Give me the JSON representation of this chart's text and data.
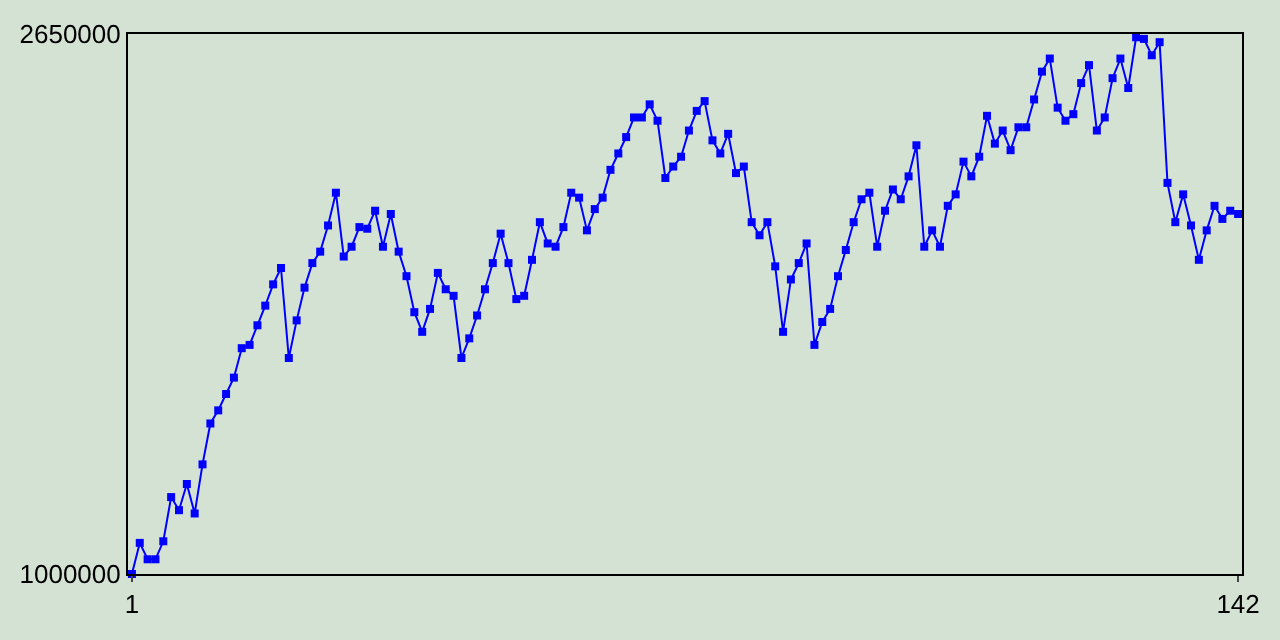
{
  "chart_data": {
    "type": "line",
    "marker": "square",
    "line_style": "solid",
    "grid": false,
    "legend": false,
    "xlim": [
      0.5,
      142.5
    ],
    "xticks": [
      1,
      142
    ],
    "ylim": [
      1000000,
      2650000
    ],
    "yticks": [
      1000000,
      2650000
    ],
    "x": [
      1,
      2,
      3,
      4,
      5,
      6,
      7,
      8,
      9,
      10,
      11,
      12,
      13,
      14,
      15,
      16,
      17,
      18,
      19,
      20,
      21,
      22,
      23,
      24,
      25,
      26,
      27,
      28,
      29,
      30,
      31,
      32,
      33,
      34,
      35,
      36,
      37,
      38,
      39,
      40,
      41,
      42,
      43,
      44,
      45,
      46,
      47,
      48,
      49,
      50,
      51,
      52,
      53,
      54,
      55,
      56,
      57,
      58,
      59,
      60,
      61,
      62,
      63,
      64,
      65,
      66,
      67,
      68,
      69,
      70,
      71,
      72,
      73,
      74,
      75,
      76,
      77,
      78,
      79,
      80,
      81,
      82,
      83,
      84,
      85,
      86,
      87,
      88,
      89,
      90,
      91,
      92,
      93,
      94,
      95,
      96,
      97,
      98,
      99,
      100,
      101,
      102,
      103,
      104,
      105,
      106,
      107,
      108,
      109,
      110,
      111,
      112,
      113,
      114,
      115,
      116,
      117,
      118,
      119,
      120,
      121,
      122,
      123,
      124,
      125,
      126,
      127,
      128,
      129,
      130,
      131,
      132,
      133,
      134,
      135,
      136,
      137,
      138,
      139,
      140,
      141,
      142
    ],
    "series": [
      {
        "color": "#0000ff",
        "values": [
          1000000,
          1095000,
          1045000,
          1045000,
          1100000,
          1235000,
          1195000,
          1275000,
          1185000,
          1335000,
          1460000,
          1500000,
          1550000,
          1600000,
          1690000,
          1700000,
          1760000,
          1820000,
          1885000,
          1935000,
          1660000,
          1775000,
          1875000,
          1950000,
          1985000,
          2065000,
          2165000,
          1970000,
          2000000,
          2060000,
          2055000,
          2110000,
          2000000,
          2100000,
          1985000,
          1910000,
          1800000,
          1740000,
          1810000,
          1920000,
          1870000,
          1850000,
          1660000,
          1720000,
          1790000,
          1870000,
          1950000,
          2040000,
          1950000,
          1840000,
          1850000,
          1960000,
          2075000,
          2010000,
          2000000,
          2060000,
          2165000,
          2150000,
          2050000,
          2115000,
          2150000,
          2235000,
          2285000,
          2335000,
          2395000,
          2395000,
          2435000,
          2385000,
          2210000,
          2245000,
          2275000,
          2355000,
          2415000,
          2445000,
          2325000,
          2285000,
          2345000,
          2225000,
          2245000,
          2075000,
          2035000,
          2075000,
          1940000,
          1740000,
          1900000,
          1950000,
          2010000,
          1700000,
          1770000,
          1810000,
          1910000,
          1990000,
          2075000,
          2145000,
          2165000,
          2000000,
          2110000,
          2175000,
          2145000,
          2215000,
          2310000,
          2000000,
          2050000,
          2000000,
          2125000,
          2160000,
          2260000,
          2215000,
          2275000,
          2400000,
          2315000,
          2355000,
          2295000,
          2365000,
          2365000,
          2450000,
          2535000,
          2575000,
          2425000,
          2385000,
          2405000,
          2500000,
          2555000,
          2355000,
          2395000,
          2515000,
          2575000,
          2485000,
          2640000,
          2635000,
          2585000,
          2625000,
          2195000,
          2075000,
          2160000,
          2065000,
          1960000,
          2050000,
          2125000,
          2085000,
          2110000,
          2100000
        ]
      }
    ]
  }
}
